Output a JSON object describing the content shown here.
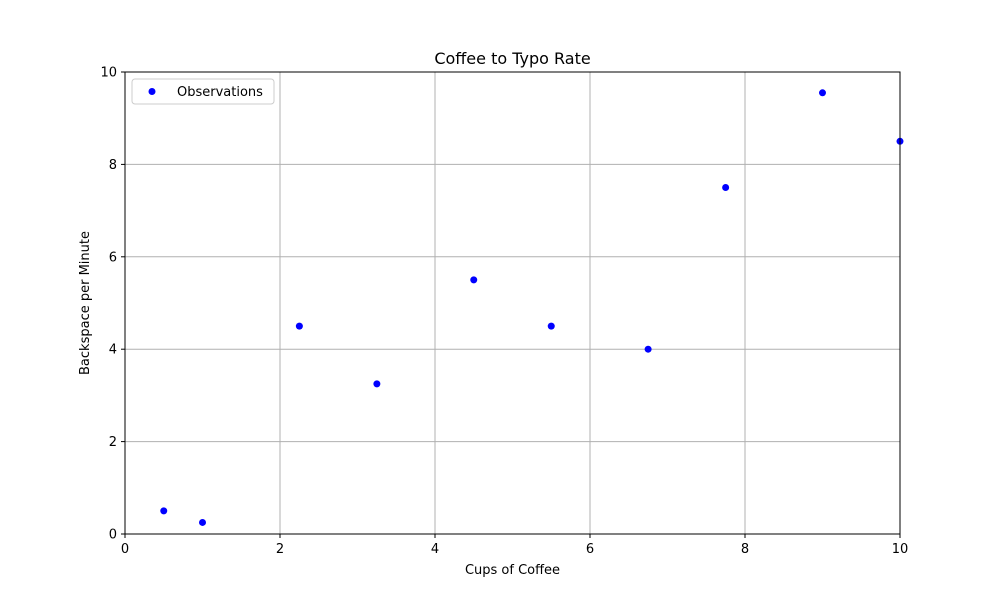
{
  "chart_data": {
    "type": "scatter",
    "title": "Coffee to Typo Rate",
    "xlabel": "Cups of Coffee",
    "ylabel": "Backspace per Minute",
    "xlim": [
      0,
      10
    ],
    "ylim": [
      0,
      10
    ],
    "xticks": [
      0,
      2,
      4,
      6,
      8,
      10
    ],
    "yticks": [
      0,
      2,
      4,
      6,
      8,
      10
    ],
    "grid": true,
    "legend": {
      "placement": "top-left"
    },
    "series": [
      {
        "name": "Observations",
        "color": "#0000ff",
        "marker": "circle",
        "points": [
          {
            "x": 0.5,
            "y": 0.5
          },
          {
            "x": 1.0,
            "y": 0.25
          },
          {
            "x": 2.25,
            "y": 4.5
          },
          {
            "x": 3.25,
            "y": 3.25
          },
          {
            "x": 4.5,
            "y": 5.5
          },
          {
            "x": 5.5,
            "y": 4.5
          },
          {
            "x": 6.75,
            "y": 4.0
          },
          {
            "x": 7.75,
            "y": 7.5
          },
          {
            "x": 9.0,
            "y": 9.55
          },
          {
            "x": 10.0,
            "y": 8.5
          }
        ]
      }
    ]
  }
}
